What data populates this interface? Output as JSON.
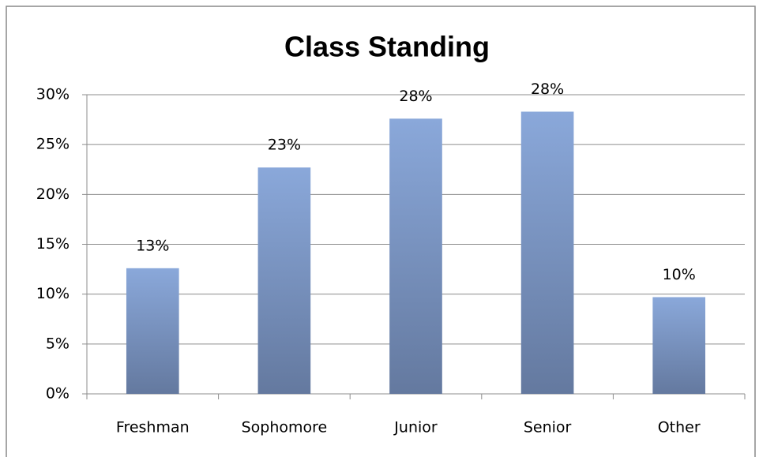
{
  "chart_data": {
    "type": "bar",
    "title": "Class Standing",
    "categories": [
      "Freshman",
      "Sophomore",
      "Junior",
      "Senior",
      "Other"
    ],
    "values": [
      12.6,
      22.7,
      27.6,
      28.3,
      9.7
    ],
    "value_labels": [
      "13%",
      "23%",
      "28%",
      "28%",
      "10%"
    ],
    "color": "#7a96c8",
    "ylim": [
      0,
      30
    ],
    "yticks": [
      {
        "value": 0,
        "label": "0%"
      },
      {
        "value": 5,
        "label": "5%"
      },
      {
        "value": 10,
        "label": "10%"
      },
      {
        "value": 15,
        "label": "15%"
      },
      {
        "value": 20,
        "label": "20%"
      },
      {
        "value": 25,
        "label": "25%"
      },
      {
        "value": 30,
        "label": "30%"
      }
    ],
    "grid": true
  }
}
